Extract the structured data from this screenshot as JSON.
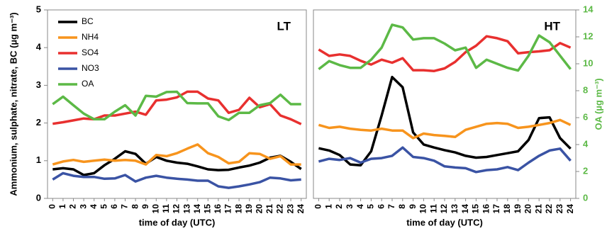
{
  "chart_data": [
    {
      "type": "line",
      "title": "LT",
      "x_label": "time of day (UTC)",
      "y_label": "Ammonium, sulphate, nitrate, BC (µg m⁻³)",
      "x": [
        0,
        1,
        2,
        3,
        4,
        5,
        6,
        7,
        8,
        9,
        10,
        11,
        12,
        13,
        14,
        15,
        16,
        17,
        18,
        19,
        20,
        21,
        22,
        23,
        24
      ],
      "xlim": [
        -0.5,
        24.5
      ],
      "xticks": [
        0,
        1,
        2,
        3,
        4,
        5,
        6,
        7,
        8,
        9,
        10,
        11,
        12,
        13,
        14,
        15,
        16,
        17,
        18,
        19,
        20,
        21,
        22,
        23,
        24
      ],
      "ylim": [
        0,
        5
      ],
      "yticks": [
        0,
        1,
        2,
        3,
        4,
        5
      ],
      "y2lim": [
        0,
        14
      ],
      "legend": "upper left",
      "series": [
        {
          "name": "BC",
          "color": "#000000",
          "values": [
            0.77,
            0.8,
            0.77,
            0.62,
            0.67,
            0.88,
            1.05,
            1.25,
            1.18,
            0.92,
            1.1,
            1.0,
            0.95,
            0.92,
            0.85,
            0.77,
            0.75,
            0.76,
            0.82,
            0.87,
            0.95,
            1.08,
            1.13,
            0.97,
            0.78
          ]
        },
        {
          "name": "NH4",
          "color": "#f7941d",
          "values": [
            0.9,
            0.98,
            1.02,
            0.97,
            1.0,
            1.03,
            1.0,
            1.02,
            1.0,
            0.9,
            1.15,
            1.12,
            1.2,
            1.32,
            1.43,
            1.2,
            1.1,
            0.93,
            0.97,
            1.2,
            1.18,
            1.05,
            1.12,
            0.9,
            0.9
          ]
        },
        {
          "name": "SO4",
          "color": "#e8302f",
          "values": [
            1.98,
            2.02,
            2.07,
            2.12,
            2.1,
            2.2,
            2.2,
            2.25,
            2.3,
            2.22,
            2.6,
            2.62,
            2.68,
            2.83,
            2.83,
            2.65,
            2.6,
            2.27,
            2.35,
            2.67,
            2.42,
            2.5,
            2.2,
            2.1,
            1.97
          ]
        },
        {
          "name": "NO3",
          "color": "#3a53a4",
          "values": [
            0.5,
            0.67,
            0.6,
            0.57,
            0.57,
            0.52,
            0.53,
            0.62,
            0.45,
            0.55,
            0.6,
            0.55,
            0.52,
            0.5,
            0.47,
            0.47,
            0.32,
            0.28,
            0.32,
            0.37,
            0.43,
            0.55,
            0.53,
            0.48,
            0.5
          ]
        },
        {
          "name": "OA",
          "color": "#5cb946",
          "axis": "y2",
          "values": [
            7.0,
            7.56,
            6.92,
            6.3,
            5.88,
            5.88,
            6.44,
            6.92,
            6.16,
            7.62,
            7.56,
            7.9,
            7.92,
            7.08,
            7.06,
            7.06,
            6.1,
            5.82,
            6.36,
            6.36,
            6.92,
            7.08,
            7.7,
            7.0,
            7.0
          ]
        }
      ]
    },
    {
      "type": "line",
      "title": "HT",
      "x_label": "time of day (UTC)",
      "y2_label": "OA (µg m⁻³)",
      "x": [
        0,
        1,
        2,
        3,
        4,
        5,
        6,
        7,
        8,
        9,
        10,
        11,
        12,
        13,
        14,
        15,
        16,
        17,
        18,
        19,
        20,
        21,
        22,
        23,
        24
      ],
      "xlim": [
        -0.5,
        24.5
      ],
      "xticks": [
        0,
        1,
        2,
        3,
        4,
        5,
        6,
        7,
        8,
        9,
        10,
        11,
        12,
        13,
        14,
        15,
        16,
        17,
        18,
        19,
        20,
        21,
        22,
        23,
        24
      ],
      "ylim": [
        0,
        5
      ],
      "y2lim": [
        0,
        14
      ],
      "y2ticks": [
        0,
        2,
        4,
        6,
        8,
        10,
        12,
        14
      ],
      "series": [
        {
          "color": "#000000",
          "values": [
            1.33,
            1.27,
            1.15,
            0.9,
            0.88,
            1.25,
            2.2,
            3.22,
            2.95,
            1.75,
            1.43,
            1.35,
            1.28,
            1.22,
            1.13,
            1.08,
            1.1,
            1.15,
            1.2,
            1.25,
            1.55,
            2.13,
            2.15,
            1.6,
            1.32
          ]
        },
        {
          "color": "#f7941d",
          "values": [
            1.95,
            1.87,
            1.9,
            1.85,
            1.82,
            1.8,
            1.85,
            1.8,
            1.8,
            1.6,
            1.72,
            1.68,
            1.66,
            1.63,
            1.82,
            1.9,
            1.98,
            2.0,
            1.98,
            1.87,
            1.9,
            1.95,
            2.0,
            2.08,
            1.95
          ]
        },
        {
          "color": "#e8302f",
          "values": [
            3.95,
            3.78,
            3.82,
            3.78,
            3.65,
            3.55,
            3.68,
            3.6,
            3.72,
            3.4,
            3.4,
            3.38,
            3.45,
            3.62,
            3.88,
            4.05,
            4.3,
            4.25,
            4.17,
            3.85,
            3.88,
            3.9,
            3.93,
            4.12,
            4.0
          ]
        },
        {
          "color": "#3a53a4",
          "values": [
            0.98,
            1.05,
            1.02,
            1.07,
            0.95,
            1.05,
            1.07,
            1.13,
            1.35,
            1.1,
            1.07,
            1.0,
            0.85,
            0.82,
            0.8,
            0.7,
            0.75,
            0.77,
            0.83,
            0.75,
            0.95,
            1.13,
            1.27,
            1.32,
            1.0
          ]
        },
        {
          "color": "#5cb946",
          "axis": "y2",
          "values": [
            9.6,
            10.2,
            9.9,
            9.7,
            9.7,
            10.3,
            11.2,
            12.9,
            12.7,
            11.8,
            11.9,
            11.9,
            11.5,
            11.0,
            11.2,
            9.7,
            10.3,
            10.0,
            9.7,
            9.5,
            10.6,
            12.1,
            11.6,
            10.6,
            9.6
          ]
        }
      ]
    }
  ]
}
